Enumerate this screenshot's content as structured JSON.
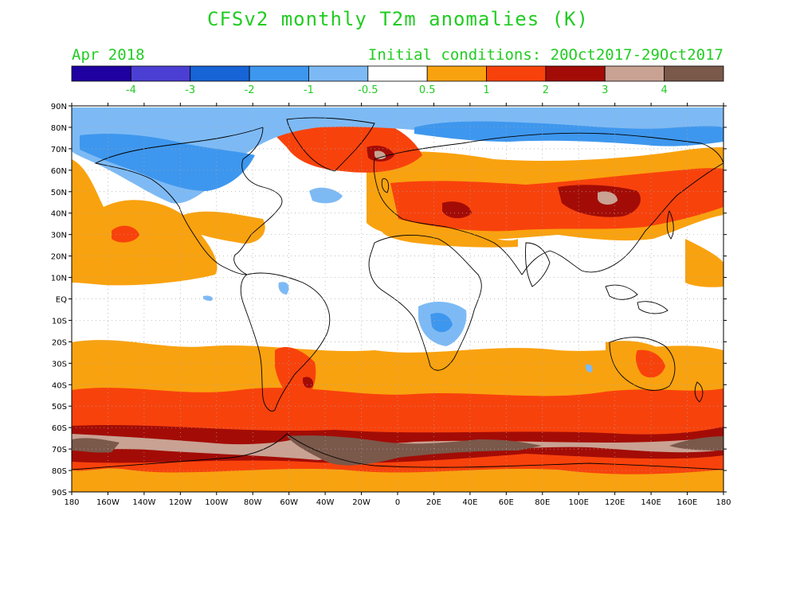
{
  "title": "CFSv2 monthly T2m anomalies (K)",
  "period_label": "Apr 2018",
  "init_label": "Initial conditions: 20Oct2017-29Oct2017",
  "colorbar": {
    "colors": [
      "#1f00a0",
      "#4b3fd3",
      "#1764d6",
      "#3e97ee",
      "#7dbaf5",
      "#ffffff",
      "#f9a20f",
      "#f8420c",
      "#a30c06",
      "#c9a293",
      "#7a584a"
    ],
    "labels": [
      "-4",
      "-3",
      "-2",
      "-1",
      "-0.5",
      "0.5",
      "1",
      "2",
      "3",
      "4"
    ]
  },
  "map": {
    "lat_labels": [
      "90N",
      "80N",
      "70N",
      "60N",
      "50N",
      "40N",
      "30N",
      "20N",
      "10N",
      "EQ",
      "10S",
      "20S",
      "30S",
      "40S",
      "50S",
      "60S",
      "70S",
      "80S",
      "90S"
    ],
    "lon_labels": [
      "180",
      "160W",
      "140W",
      "120W",
      "100W",
      "80W",
      "60W",
      "40W",
      "20W",
      "0",
      "20E",
      "40E",
      "60E",
      "80E",
      "100E",
      "120E",
      "140E",
      "160E",
      "180"
    ],
    "colors": {
      "background": "#ffffff",
      "anomaly_warm_05_1": "#f9a20f",
      "anomaly_warm_1_2": "#f8420c",
      "anomaly_warm_2_3": "#a30c06",
      "anomaly_warm_3_4": "#c9a293",
      "anomaly_warm_4plus": "#7a584a",
      "anomaly_cool_05_1": "#7dbaf5",
      "anomaly_cool_1_2": "#3e97ee",
      "anomaly_cool_2_3": "#1764d6",
      "coastline": "#000000",
      "gridline": "#9a9a9a",
      "labels": "#22cc22"
    }
  }
}
